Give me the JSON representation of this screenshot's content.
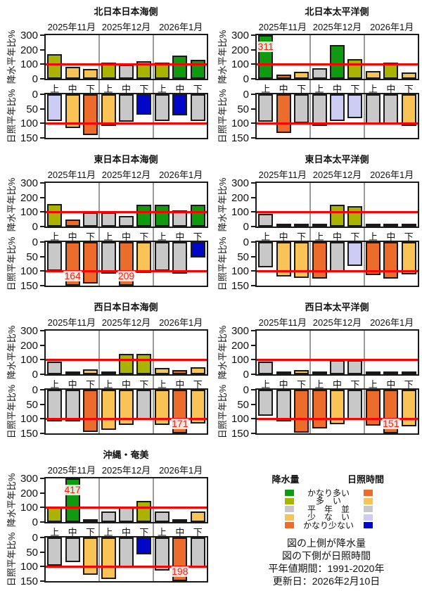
{
  "chart_data": {
    "type": "bar",
    "months": [
      "2025年11月",
      "2025年12月",
      "2026年1月"
    ],
    "periods": [
      "上",
      "中",
      "下"
    ],
    "precip_axis": {
      "label": "降水平年比%",
      "ticks": [
        "300",
        "200",
        "100",
        "0"
      ],
      "max": 300
    },
    "sun_axis": {
      "label": "日照平年比%",
      "ticks": [
        "0",
        "50",
        "100",
        "150"
      ],
      "max": 150,
      "inverted": true
    },
    "reference_line": 100,
    "panels": [
      {
        "title": "北日本日本海側",
        "precipitation": {
          "values": [
            170,
            80,
            70,
            110,
            95,
            120,
            110,
            160,
            130
          ],
          "levels": [
            "more",
            "less",
            "less",
            "more",
            "normal",
            "more",
            "more",
            "much_more",
            "much_more"
          ],
          "overflow_labels": {}
        },
        "sunshine": {
          "values": [
            93,
            115,
            140,
            108,
            95,
            70,
            92,
            72,
            92
          ],
          "levels": [
            "less",
            "more",
            "much_more",
            "more",
            "normal",
            "much_less",
            "normal",
            "much_less",
            "normal"
          ],
          "overflow_labels": {}
        }
      },
      {
        "title": "北日本太平洋側",
        "precipitation": {
          "values": [
            311,
            30,
            50,
            75,
            230,
            135,
            55,
            112,
            42
          ],
          "levels": [
            "much_more",
            "much_less",
            "less",
            "normal",
            "much_more",
            "more",
            "less",
            "more",
            "less"
          ],
          "overflow_labels": {
            "0": "311"
          }
        },
        "sunshine": {
          "values": [
            95,
            133,
            98,
            108,
            93,
            82,
            103,
            102,
            108
          ],
          "levels": [
            "normal",
            "much_more",
            "normal",
            "normal",
            "less",
            "less",
            "normal",
            "normal",
            "more"
          ],
          "overflow_labels": {}
        }
      },
      {
        "title": "東日本日本海側",
        "precipitation": {
          "values": [
            155,
            50,
            95,
            95,
            75,
            150,
            150,
            110,
            150
          ],
          "levels": [
            "more",
            "much_less",
            "normal",
            "normal",
            "normal",
            "much_more",
            "much_more",
            "normal",
            "much_more"
          ],
          "overflow_labels": {}
        },
        "sunshine": {
          "values": [
            100,
            164,
            143,
            108,
            209,
            107,
            100,
            108,
            53
          ],
          "levels": [
            "normal",
            "much_more",
            "much_more",
            "normal",
            "much_more",
            "more",
            "normal",
            "normal",
            "much_less"
          ],
          "overflow_labels": {
            "1": "164",
            "4": "209"
          }
        }
      },
      {
        "title": "東日本太平洋側",
        "precipitation": {
          "values": [
            85,
            5,
            20,
            8,
            148,
            138,
            12,
            18,
            8
          ],
          "levels": [
            "normal",
            "much_less",
            "less",
            "much_less",
            "more",
            "more",
            "less",
            "less",
            "much_less"
          ],
          "overflow_labels": {}
        },
        "sunshine": {
          "values": [
            88,
            118,
            123,
            125,
            102,
            82,
            113,
            125,
            112
          ],
          "levels": [
            "normal",
            "more",
            "more",
            "much_more",
            "normal",
            "less",
            "much_more",
            "much_more",
            "more"
          ],
          "overflow_labels": {}
        }
      },
      {
        "title": "西日本日本海側",
        "precipitation": {
          "values": [
            85,
            20,
            35,
            15,
            138,
            138,
            45,
            30,
            48
          ],
          "levels": [
            "normal",
            "much_less",
            "less",
            "much_less",
            "more",
            "more",
            "less",
            "much_less",
            "less"
          ],
          "overflow_labels": {}
        },
        "sunshine": {
          "values": [
            110,
            110,
            145,
            138,
            122,
            103,
            122,
            171,
            117
          ],
          "levels": [
            "normal",
            "normal",
            "much_more",
            "more",
            "more",
            "normal",
            "more",
            "much_more",
            "more"
          ],
          "overflow_labels": {
            "7": "171"
          }
        }
      },
      {
        "title": "西日本太平洋側",
        "precipitation": {
          "values": [
            85,
            20,
            30,
            5,
            95,
            95,
            20,
            5,
            5
          ],
          "levels": [
            "normal",
            "less",
            "less",
            "much_less",
            "normal",
            "normal",
            "less",
            "much_less",
            "much_less"
          ],
          "overflow_labels": {}
        },
        "sunshine": {
          "values": [
            90,
            108,
            148,
            133,
            118,
            103,
            123,
            151,
            125
          ],
          "levels": [
            "normal",
            "normal",
            "much_more",
            "much_more",
            "more",
            "normal",
            "much_more",
            "much_more",
            "more"
          ],
          "overflow_labels": {
            "7": "151"
          }
        }
      },
      {
        "title": "沖縄・奄美",
        "precipitation": {
          "values": [
            108,
            417,
            20,
            75,
            100,
            145,
            75,
            15,
            75
          ],
          "levels": [
            "more",
            "much_more",
            "less",
            "normal",
            "normal",
            "more",
            "normal",
            "much_less",
            "less"
          ],
          "overflow_labels": {
            "1": "417"
          }
        },
        "sunshine": {
          "values": [
            97,
            85,
            128,
            143,
            103,
            58,
            113,
            198,
            103
          ],
          "levels": [
            "normal",
            "normal",
            "more",
            "more",
            "normal",
            "much_less",
            "normal",
            "much_more",
            "normal"
          ],
          "overflow_labels": {
            "7": "198"
          }
        }
      }
    ]
  },
  "colors": {
    "precipitation": {
      "much_more": "#0f9b10",
      "more": "#a8b400",
      "normal": "#c8c8c8",
      "less": "#f9c455",
      "much_less": "#ec6c2c"
    },
    "sunshine": {
      "much_more": "#ec6c2c",
      "more": "#f9c455",
      "normal": "#c8c8c8",
      "less": "#ccccf5",
      "much_less": "#0008c8"
    },
    "reference": "#ff0000",
    "separator": "#9a9a9a",
    "frame": "#1a1a1a",
    "value_label": "#e8251f"
  },
  "legend": {
    "precip_title": "降水量",
    "sun_title": "日照時間",
    "rows": [
      {
        "label": "かなり多い",
        "level": "much_more"
      },
      {
        "label": "多　い",
        "level": "more"
      },
      {
        "label": "平　年　並",
        "level": "normal"
      },
      {
        "label": "少　な　い",
        "level": "less"
      },
      {
        "label": "かなり少ない",
        "level": "much_less"
      }
    ]
  },
  "footer": {
    "lines": [
      "図の上側が降水量",
      "図の下側が日照時間",
      "平年値期間：1991-2020年",
      "更新日：2026年2月10日"
    ]
  }
}
